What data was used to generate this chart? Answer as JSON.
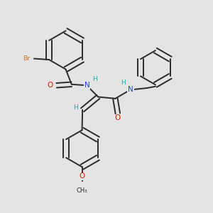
{
  "bg_color": "#e4e4e4",
  "bond_color": "#2a2a2a",
  "bond_lw": 1.4,
  "atom_colors": {
    "Br": "#c87820",
    "O": "#cc2200",
    "N": "#2244cc",
    "H": "#22aaaa",
    "C": "#2a2a2a"
  },
  "font_size_atom": 7.5,
  "font_size_h": 6.5
}
